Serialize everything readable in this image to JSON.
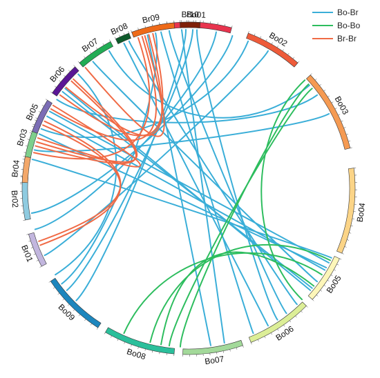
{
  "legend": [
    {
      "key": "bo_br",
      "label": "Bo-Br",
      "color": "#3aaed8"
    },
    {
      "key": "bo_bo",
      "label": "Bo-Bo",
      "color": "#2dbd5e"
    },
    {
      "key": "br_br",
      "label": "Br-Br",
      "color": "#f06a45"
    }
  ],
  "chromosomes": [
    {
      "id": "Bo01",
      "label": "Bo01",
      "start": 75,
      "end": 100,
      "color": "#e8344e",
      "ticks": 10
    },
    {
      "id": "Bo02",
      "label": "Bo02",
      "start": 49,
      "end": 69,
      "color": "#ee5b3a",
      "ticks": 9
    },
    {
      "id": "Bo03",
      "label": "Bo03",
      "start": 14,
      "end": 43,
      "color": "#f59a52",
      "ticks": 12
    },
    {
      "id": "Bo04",
      "label": "Bo04",
      "start": -23,
      "end": 7,
      "color": "#fbd487",
      "ticks": 12
    },
    {
      "id": "Bo05",
      "label": "Bo05",
      "start": -42,
      "end": -25,
      "color": "#fdf6b9",
      "ticks": 8
    },
    {
      "id": "Bo06",
      "label": "Bo06",
      "start": -68,
      "end": -45,
      "color": "#dcee97",
      "ticks": 9
    },
    {
      "id": "Bo07",
      "label": "Bo07",
      "start": -92,
      "end": -71,
      "color": "#a3d99a",
      "ticks": 9
    },
    {
      "id": "Bo08",
      "label": "Bo08",
      "start": -120,
      "end": -95,
      "color": "#2bbf9b",
      "ticks": 10
    },
    {
      "id": "Bo09",
      "label": "Bo09",
      "start": -146,
      "end": -123,
      "color": "#1d86bd",
      "ticks": 9
    },
    {
      "id": "Br01",
      "label": "Br01",
      "start": -164,
      "end": -152,
      "color": "#c2b6de",
      "ticks": 5
    },
    {
      "id": "Br02",
      "label": "Br02",
      "start": -184,
      "end": -169,
      "color": "#8fcbe0",
      "ticks": 6
    },
    {
      "id": "Br03",
      "label": "Br03",
      "start": -204,
      "end": -190,
      "color": "#7ecf8c",
      "ticks": 6
    },
    {
      "id": "Br04",
      "label": "Br04",
      "start": 169,
      "end": 178,
      "color": "#f3a86a",
      "ticks": 4
    },
    {
      "id": "Br05",
      "label": "Br05",
      "start": 148,
      "end": 160,
      "color": "#7b6db5",
      "ticks": 5
    },
    {
      "id": "Br06",
      "label": "Br06",
      "start": 133,
      "end": 145,
      "color": "#5a1696",
      "ticks": 5
    },
    {
      "id": "Br07",
      "label": "Br07",
      "start": 118,
      "end": 131,
      "color": "#22ac55",
      "ticks": 5
    },
    {
      "id": "Br08",
      "label": "Br08",
      "start": 111,
      "end": 116,
      "color": "#0e5a2b",
      "ticks": 3
    },
    {
      "id": "Br09",
      "label": "Br09",
      "start": 95,
      "end": 110,
      "color": "#ee6a18",
      "ticks": 6
    },
    {
      "id": "Br10",
      "label": "Br10",
      "start": 86,
      "end": 93,
      "color": "#7e1f08",
      "ticks": 3
    }
  ],
  "links": [
    {
      "type": "br_br",
      "from": 130.5,
      "to": 106.0
    },
    {
      "type": "br_br",
      "from": 140.5,
      "to": 104.5
    },
    {
      "type": "br_br",
      "from": 144.0,
      "to": 103.0
    },
    {
      "type": "br_br",
      "from": 150.0,
      "to": 107.0
    },
    {
      "type": "br_br",
      "from": 156.5,
      "to": -159.0
    },
    {
      "type": "br_br",
      "from": 155.0,
      "to": -160.5
    },
    {
      "type": "br_br",
      "from": 136.5,
      "to": -197.0
    },
    {
      "type": "br_br",
      "from": 137.5,
      "to": -195.5
    },
    {
      "type": "br_br",
      "from": 108.5,
      "to": -193.0
    },
    {
      "type": "br_br",
      "from": 148.5,
      "to": -198.5
    },
    {
      "type": "bo_bo",
      "from": 43.0,
      "to": -44.5
    },
    {
      "type": "bo_bo",
      "from": 41.0,
      "to": -93.0
    },
    {
      "type": "bo_bo",
      "from": 39.0,
      "to": -97.0
    },
    {
      "type": "bo_bo",
      "from": -27.0,
      "to": -104.0
    },
    {
      "type": "bo_bo",
      "from": -33.0,
      "to": -114.0
    },
    {
      "type": "bo_bo",
      "from": -38.0,
      "to": -100.0
    },
    {
      "type": "bo_br",
      "from": 80.0,
      "to": -165.0
    },
    {
      "type": "bo_br",
      "from": 88.5,
      "to": -140.0
    },
    {
      "type": "bo_br",
      "from": 91.0,
      "to": -135.0
    },
    {
      "type": "bo_br",
      "from": 92.5,
      "to": -77.0
    },
    {
      "type": "bo_br",
      "from": 87.0,
      "to": -56.0
    },
    {
      "type": "bo_br",
      "from": 97.0,
      "to": -52.0
    },
    {
      "type": "bo_br",
      "from": 100.0,
      "to": -66.0
    },
    {
      "type": "bo_br",
      "from": 102.0,
      "to": -143.0
    },
    {
      "type": "bo_br",
      "from": 105.0,
      "to": -82.0
    },
    {
      "type": "bo_br",
      "from": 112.0,
      "to": -47.0
    },
    {
      "type": "bo_br",
      "from": 114.0,
      "to": -60.0
    },
    {
      "type": "bo_br",
      "from": 120.0,
      "to": 40.5
    },
    {
      "type": "bo_br",
      "from": 127.0,
      "to": -36.0
    },
    {
      "type": "bo_br",
      "from": 141.0,
      "to": -40.0
    },
    {
      "type": "bo_br",
      "from": 142.5,
      "to": -39.0
    },
    {
      "type": "bo_br",
      "from": 146.0,
      "to": 36.0
    },
    {
      "type": "bo_br",
      "from": 151.0,
      "to": -28.0
    },
    {
      "type": "bo_br",
      "from": 153.0,
      "to": -31.0
    },
    {
      "type": "bo_br",
      "from": -194.0,
      "to": 28.0
    },
    {
      "type": "bo_br",
      "from": -200.0,
      "to": -30.0
    },
    {
      "type": "bo_br",
      "from": -202.0,
      "to": 68.0
    },
    {
      "type": "bo_br",
      "from": -155.0,
      "to": 60.0
    },
    {
      "type": "bo_br",
      "from": -171.0,
      "to": 74.0
    },
    {
      "type": "bo_br",
      "from": -190.5,
      "to": -26.0
    },
    {
      "type": "bo_br",
      "from": 134.0,
      "to": -147.0
    }
  ]
}
